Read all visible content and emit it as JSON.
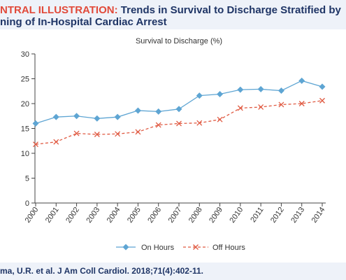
{
  "header": {
    "label": "NTRAL ILLUSTRATION:",
    "title_line1": "Trends in Survival to Discharge Stratified by",
    "title_line2": "ning of In-Hospital Cardiac Arrest"
  },
  "citation": "ma, U.R. et al. J Am Coll Cardiol. 2018;71(4):402-11.",
  "colors": {
    "on_hours": "#5ea5d3",
    "off_hours": "#e05a42",
    "title_navy": "#1f3566",
    "title_red": "#e14a3a",
    "band": "#eef2f9"
  },
  "chart_data": {
    "type": "line",
    "title": "Survival to Discharge (%)",
    "x": [
      "2000",
      "2001",
      "2002",
      "2003",
      "2004",
      "2005",
      "2006",
      "2007",
      "2008",
      "2009",
      "2010",
      "2011",
      "2012",
      "2013",
      "2014"
    ],
    "series": [
      {
        "name": "On Hours",
        "marker": "diamond",
        "line": "solid",
        "values": [
          16.0,
          17.3,
          17.5,
          17.0,
          17.3,
          18.6,
          18.4,
          18.9,
          21.6,
          21.9,
          22.8,
          22.9,
          22.6,
          24.6,
          23.4
        ]
      },
      {
        "name": "Off Hours",
        "marker": "x",
        "line": "dashed",
        "values": [
          11.8,
          12.3,
          14.0,
          13.8,
          13.9,
          14.3,
          15.7,
          16.0,
          16.1,
          16.8,
          19.1,
          19.3,
          19.8,
          20.0,
          20.6
        ]
      }
    ],
    "ylim": [
      0,
      30
    ],
    "yticks": [
      "0",
      "5",
      "10",
      "15",
      "20",
      "25",
      "30"
    ],
    "grid": false,
    "legend_position": "bottom"
  }
}
